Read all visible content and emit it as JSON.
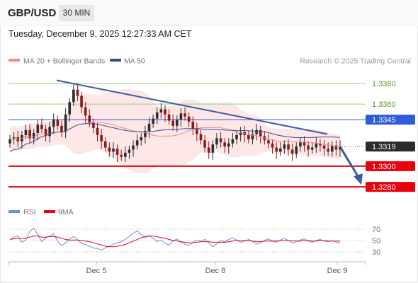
{
  "header": {
    "symbol": "GBP/USD",
    "timeframe": "30 MIN",
    "datetime": "Tuesday, December 9, 2025 12:27:33 AM CET"
  },
  "colors": {
    "ma20": "#f08a8a",
    "ma50": "#2f4f8f",
    "band_fill": "#fde3e3",
    "candle_up": "#2d2d2d",
    "candle_down": "#8b1a1a",
    "green_level": "#9ad07c",
    "blue_level": "#2e5bd8",
    "red_level": "#e8000d",
    "trend_line": "#3a5ba5",
    "rsi": "#6a8fd8",
    "rsi_ma": "#e8000d",
    "last_price_bg": "#2b2b2b"
  },
  "legend": {
    "ma20_label": "MA 20 + Bollinger Bands",
    "ma50_label": "MA 50",
    "credit": "Research © 2025 Trading Central",
    "rsi_label": "RSI",
    "rsi_ma_label": "9MA"
  },
  "chart_data": {
    "type": "candlestick",
    "x_ticks": [
      "Dec 5",
      "Dec 8",
      "Dec 9"
    ],
    "ylim": [
      1.3265,
      1.3395
    ],
    "levels": [
      {
        "value": 1.338,
        "label": "1.3380",
        "kind": "resistance-green"
      },
      {
        "value": 1.336,
        "label": "1.3360",
        "kind": "resistance-green"
      },
      {
        "value": 1.3345,
        "label": "1.3345",
        "kind": "pivot"
      },
      {
        "value": 1.3319,
        "label": "1.3319",
        "kind": "last"
      },
      {
        "value": 1.33,
        "label": "1.3300",
        "kind": "support"
      },
      {
        "value": 1.328,
        "label": "1.3280",
        "kind": "support"
      }
    ],
    "trendline": {
      "from": 1.3383,
      "to": 1.3331
    },
    "projection": {
      "from": 1.3319,
      "to": 1.3282
    },
    "closes": [
      1.3326,
      1.3328,
      1.3324,
      1.333,
      1.3335,
      1.3327,
      1.3332,
      1.334,
      1.3336,
      1.3329,
      1.3338,
      1.3345,
      1.3339,
      1.3333,
      1.335,
      1.3362,
      1.3374,
      1.3368,
      1.3357,
      1.3349,
      1.3342,
      1.3337,
      1.333,
      1.3324,
      1.3318,
      1.3314,
      1.3317,
      1.3311,
      1.3309,
      1.3313,
      1.3316,
      1.332,
      1.3325,
      1.3328,
      1.3334,
      1.3341,
      1.3346,
      1.3352,
      1.3355,
      1.335,
      1.3344,
      1.3339,
      1.3345,
      1.3351,
      1.3348,
      1.3343,
      1.3336,
      1.3331,
      1.3325,
      1.3318,
      1.3313,
      1.3321,
      1.3327,
      1.3323,
      1.3319,
      1.3322,
      1.3326,
      1.333,
      1.3333,
      1.333,
      1.3326,
      1.3331,
      1.3335,
      1.3329,
      1.3325,
      1.3322,
      1.3318,
      1.3314,
      1.3317,
      1.3321,
      1.3316,
      1.3312,
      1.3319,
      1.3323,
      1.332,
      1.3316,
      1.3318,
      1.3322,
      1.332,
      1.3317,
      1.3314,
      1.332,
      1.3316,
      1.3319
    ],
    "rsi": {
      "ticks": [
        70,
        50,
        30
      ],
      "ylim": [
        20,
        80
      ],
      "values": [
        52,
        56,
        58,
        47,
        51,
        66,
        72,
        60,
        48,
        55,
        58,
        62,
        49,
        41,
        46,
        53,
        57,
        52,
        45,
        43,
        40,
        37,
        36,
        33,
        37,
        40,
        44,
        46,
        48,
        52,
        57,
        63,
        67,
        61,
        55,
        59,
        54,
        48,
        51,
        45,
        42,
        49,
        53,
        47,
        44,
        41,
        47,
        51,
        49,
        52,
        46,
        39,
        44,
        50,
        48,
        52,
        55,
        51,
        47,
        49,
        52,
        48,
        44,
        46,
        50,
        53,
        49,
        47,
        51,
        54,
        50,
        46,
        48,
        51,
        53,
        49,
        47,
        50,
        52,
        49,
        48,
        50,
        47,
        46
      ],
      "ma9": [
        52,
        53,
        54,
        54,
        54,
        56,
        58,
        58,
        56,
        56,
        57,
        57,
        56,
        54,
        52,
        51,
        51,
        51,
        50,
        49,
        48,
        46,
        44,
        42,
        40,
        39,
        39,
        40,
        41,
        43,
        46,
        49,
        52,
        55,
        57,
        58,
        58,
        57,
        55,
        54,
        52,
        50,
        49,
        48,
        47,
        46,
        46,
        47,
        48,
        48,
        48,
        47,
        47,
        47,
        47,
        48,
        49,
        50,
        50,
        50,
        50,
        49,
        48,
        48,
        49,
        49,
        49,
        49,
        50,
        50,
        50,
        50,
        49,
        49,
        50,
        50,
        49,
        49,
        50,
        50,
        49,
        49,
        49,
        49
      ]
    }
  }
}
